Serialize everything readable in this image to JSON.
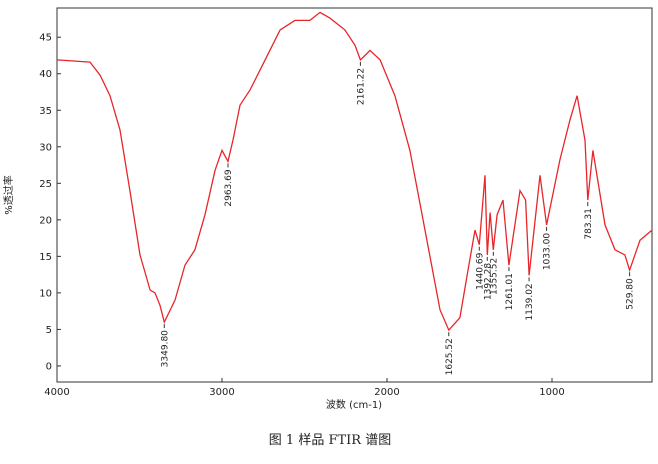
{
  "chart_data": {
    "type": "line",
    "caption": "图 1  样品 FTIR 谱图",
    "xlabel": "波数 (cm-1)",
    "ylabel": "%透过率",
    "xlim": [
      4000,
      394
    ],
    "ylim": [
      -2.2,
      49
    ],
    "xticks": [
      4000,
      3000,
      2000,
      1000
    ],
    "yticks": [
      0,
      5,
      10,
      15,
      20,
      25,
      30,
      35,
      40,
      45
    ],
    "series": [
      {
        "color": "#e8262a",
        "x": [
          4000,
          3800,
          3739,
          3679,
          3618,
          3558,
          3497,
          3436,
          3406,
          3376,
          3349.8,
          3285,
          3224,
          3164,
          3103,
          3042,
          3000,
          2963.69,
          2933,
          2891,
          2830,
          2739,
          2648,
          2558,
          2467,
          2406,
          2345,
          2255,
          2194,
          2161.22,
          2103,
          2042,
          1952,
          1861,
          1770,
          1679,
          1625.52,
          1558,
          1509,
          1467,
          1440.69,
          1406,
          1392.28,
          1375,
          1355.52,
          1333,
          1297,
          1261.01,
          1194,
          1160,
          1139.02,
          1073,
          1033,
          952,
          891,
          848,
          800,
          783.31,
          752,
          679,
          618,
          558,
          529.8,
          467,
          394
        ],
        "values": [
          41.9,
          41.6,
          39.8,
          37,
          32.3,
          24,
          15.2,
          10.4,
          10,
          8.3,
          6,
          9,
          13.8,
          15.9,
          20.7,
          26.8,
          29.5,
          28,
          31,
          35.7,
          37.8,
          41.9,
          46,
          47.3,
          47.3,
          48.4,
          47.6,
          46,
          43.9,
          41.9,
          43.2,
          41.9,
          37,
          29.5,
          18.6,
          7.7,
          4.9,
          6.6,
          13.1,
          18.6,
          16.6,
          26.1,
          15.2,
          21,
          15.9,
          20.7,
          22.7,
          13.8,
          24,
          22.7,
          12.4,
          26.1,
          19.3,
          28.2,
          33.7,
          37,
          30.9,
          22.7,
          29.5,
          19.3,
          15.9,
          15.2,
          13.1,
          17.2,
          18.6
        ]
      }
    ],
    "annotations": [
      {
        "value": 3349.8,
        "label": "3349.80",
        "y": 6
      },
      {
        "value": 2963.69,
        "label": "2963.69",
        "y": 28
      },
      {
        "value": 2161.22,
        "label": "2161.22",
        "y": 41.9
      },
      {
        "value": 1625.52,
        "label": "1625.52",
        "y": 4.9
      },
      {
        "value": 1440.69,
        "label": "1440.69",
        "y": 16.6
      },
      {
        "value": 1392.28,
        "label": "1392.28",
        "y": 15.2
      },
      {
        "value": 1355.52,
        "label": "1355.52",
        "y": 15.9
      },
      {
        "value": 1261.01,
        "label": "1261.01",
        "y": 13.8
      },
      {
        "value": 1139.02,
        "label": "1139.02",
        "y": 12.4
      },
      {
        "value": 1033,
        "label": "1033.00",
        "y": 19.3
      },
      {
        "value": 783.31,
        "label": "783.31",
        "y": 22.7
      },
      {
        "value": 529.8,
        "label": "529.80",
        "y": 13.1
      }
    ]
  }
}
